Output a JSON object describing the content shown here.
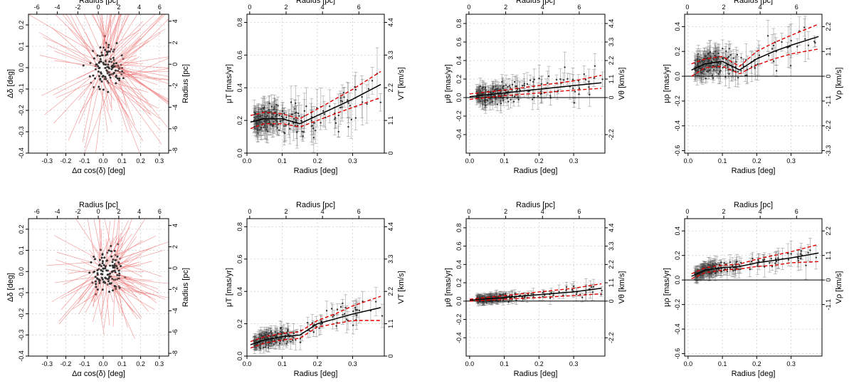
{
  "figure": {
    "labels": {
      "radius_pc": "Radius [pc]",
      "radius_deg": "Radius [deg]",
      "ddelta": "Δδ [deg]",
      "dalpha": "Δα cos(δ) [deg]",
      "muT": "μT [mas/yr]",
      "VT": "VT [km/s]",
      "mutheta": "μθ [mas/yr]",
      "Vtheta": "Vθ [km/s]",
      "murho": "μρ [mas/yr]",
      "Vrho": "Vρ [km/s]"
    }
  },
  "chart_data": [
    {
      "id": "top-sky",
      "type": "scatter",
      "xlabel": "Δα cos(δ) [deg]",
      "ylabel": "Δδ [deg]",
      "x2label": "Radius [pc]",
      "y2label": "Radius [pc]",
      "xlim": [
        -0.4,
        0.35
      ],
      "ylim": [
        -0.4,
        0.25
      ],
      "x_ticks": [
        -0.3,
        -0.2,
        -0.1,
        0.0,
        0.1,
        0.2,
        0.3
      ],
      "y_ticks": [
        -0.4,
        -0.3,
        -0.2,
        -0.1,
        0.0,
        0.1,
        0.2
      ],
      "x2_ticks": [
        -6,
        -4,
        -2,
        0,
        2,
        4,
        6
      ],
      "y2_ticks": [
        -8,
        -6,
        -4,
        -2,
        0,
        2,
        4
      ],
      "arrows": "many long radial proper-motion vectors",
      "n_points": 120,
      "spread": [
        0.1,
        0.12
      ],
      "arrow_scale": 0.35,
      "seed": 11
    },
    {
      "id": "top-muT",
      "type": "line",
      "xlabel": "Radius [deg]",
      "ylabel": "μT [mas/yr]",
      "x2label": "Radius [pc]",
      "y2label": "VT [km/s]",
      "xlim": [
        0,
        0.39
      ],
      "ylim": [
        0,
        0.85
      ],
      "x_ticks": [
        0.0,
        0.1,
        0.2,
        0.3
      ],
      "y_ticks": [
        0.0,
        0.2,
        0.4,
        0.6,
        0.8
      ],
      "x2_ticks": [
        "0",
        "2",
        "4",
        "6"
      ],
      "y2_ticks": [
        "0",
        "1.1",
        "2.2",
        "3.3",
        "4.4"
      ],
      "y2_values": [
        0,
        0.2,
        0.4,
        0.6,
        0.8
      ],
      "zero_line": 0,
      "mean": {
        "x": [
          0.01,
          0.05,
          0.1,
          0.15,
          0.2,
          0.25,
          0.3,
          0.38
        ],
        "y": [
          0.19,
          0.21,
          0.21,
          0.18,
          0.23,
          0.28,
          0.33,
          0.42
        ]
      },
      "upper": {
        "x": [
          0.01,
          0.05,
          0.1,
          0.15,
          0.2,
          0.25,
          0.3,
          0.38
        ],
        "y": [
          0.23,
          0.25,
          0.24,
          0.21,
          0.27,
          0.33,
          0.39,
          0.5
        ]
      },
      "lower": {
        "x": [
          0.01,
          0.05,
          0.1,
          0.15,
          0.2,
          0.25,
          0.3,
          0.38
        ],
        "y": [
          0.15,
          0.18,
          0.18,
          0.16,
          0.2,
          0.24,
          0.28,
          0.34
        ]
      },
      "scatter": {
        "n": 230,
        "noise": 0.11,
        "err": 0.07,
        "seed": 21
      }
    },
    {
      "id": "top-mutheta",
      "type": "line",
      "xlabel": "Radius [deg]",
      "ylabel": "μθ [mas/yr]",
      "x2label": "Radius [pc]",
      "y2label": "Vθ [km/s]",
      "xlim": [
        -0.01,
        0.39
      ],
      "ylim": [
        -0.6,
        0.9
      ],
      "x_ticks": [
        0.0,
        0.1,
        0.2,
        0.3
      ],
      "y_ticks": [
        -0.4,
        -0.2,
        0.0,
        0.2,
        0.4,
        0.6,
        0.8
      ],
      "x2_ticks": [
        "0",
        "2",
        "4",
        "6"
      ],
      "y2_ticks": [
        "-2.2",
        "0",
        "1.1",
        "2.2",
        "3.3",
        "4.4"
      ],
      "y2_values": [
        -0.4,
        0,
        0.2,
        0.4,
        0.6,
        0.8
      ],
      "zero_line": 0,
      "mean": {
        "x": [
          0.0,
          0.1,
          0.2,
          0.3,
          0.38
        ],
        "y": [
          0.01,
          0.05,
          0.09,
          0.13,
          0.16
        ]
      },
      "upper": {
        "x": [
          0.0,
          0.1,
          0.2,
          0.3,
          0.38
        ],
        "y": [
          0.04,
          0.08,
          0.13,
          0.18,
          0.24
        ]
      },
      "lower": {
        "x": [
          0.0,
          0.1,
          0.2,
          0.3,
          0.38
        ],
        "y": [
          -0.02,
          0.02,
          0.05,
          0.08,
          0.1
        ]
      },
      "scatter": {
        "n": 230,
        "noise": 0.14,
        "err": 0.08,
        "seed": 31
      }
    },
    {
      "id": "top-murho",
      "type": "line",
      "xlabel": "Radius [deg]",
      "ylabel": "μρ [mas/yr]",
      "x2label": "Radius [pc]",
      "y2label": "Vρ [km/s]",
      "xlim": [
        -0.01,
        0.39
      ],
      "ylim": [
        -0.62,
        0.5
      ],
      "x_ticks": [
        0.0,
        0.1,
        0.2,
        0.3
      ],
      "y_ticks": [
        -0.6,
        -0.4,
        -0.2,
        0.0,
        0.2,
        0.4
      ],
      "x2_ticks": [
        "0",
        "2",
        "4",
        "6"
      ],
      "y2_ticks": [
        "-3.3",
        "-2.2",
        "-1.1",
        "0",
        "1.1",
        "2.2"
      ],
      "y2_values": [
        -0.6,
        -0.4,
        -0.2,
        0,
        0.2,
        0.4
      ],
      "zero_line": 0,
      "mean": {
        "x": [
          0.01,
          0.05,
          0.1,
          0.15,
          0.2,
          0.25,
          0.3,
          0.38
        ],
        "y": [
          0.05,
          0.1,
          0.12,
          0.05,
          0.14,
          0.2,
          0.25,
          0.32
        ]
      },
      "upper": {
        "x": [
          0.01,
          0.05,
          0.1,
          0.15,
          0.2,
          0.25,
          0.3,
          0.38
        ],
        "y": [
          0.1,
          0.14,
          0.16,
          0.08,
          0.2,
          0.27,
          0.33,
          0.42
        ]
      },
      "lower": {
        "x": [
          0.01,
          0.05,
          0.1,
          0.15,
          0.2,
          0.25,
          0.3,
          0.38
        ],
        "y": [
          0.0,
          0.07,
          0.08,
          0.02,
          0.09,
          0.14,
          0.18,
          0.22
        ]
      },
      "scatter": {
        "n": 230,
        "noise": 0.13,
        "err": 0.08,
        "seed": 41
      }
    },
    {
      "id": "bottom-sky",
      "type": "scatter",
      "xlabel": "Δα cos(δ) [deg]",
      "ylabel": "Δδ [deg]",
      "x2label": "Radius [pc]",
      "y2label": "Radius [pc]",
      "xlim": [
        -0.4,
        0.35
      ],
      "ylim": [
        -0.4,
        0.25
      ],
      "x_ticks": [
        -0.3,
        -0.2,
        -0.1,
        0.0,
        0.1,
        0.2,
        0.3
      ],
      "y_ticks": [
        -0.4,
        -0.3,
        -0.2,
        -0.1,
        0.0,
        0.1,
        0.2
      ],
      "x2_ticks": [
        -6,
        -4,
        -2,
        0,
        2,
        4,
        6
      ],
      "y2_ticks": [
        -8,
        -6,
        -4,
        -2,
        0,
        2,
        4
      ],
      "arrows": "shorter radial proper-motion vectors",
      "n_points": 120,
      "spread": [
        0.09,
        0.11
      ],
      "arrow_scale": 0.22,
      "seed": 51
    },
    {
      "id": "bottom-muT",
      "type": "line",
      "xlabel": "Radius [deg]",
      "ylabel": "μT [mas/yr]",
      "x2label": "Radius [pc]",
      "y2label": "VT [km/s]",
      "xlim": [
        0,
        0.39
      ],
      "ylim": [
        0,
        0.85
      ],
      "x_ticks": [
        0.0,
        0.1,
        0.2,
        0.3
      ],
      "y_ticks": [
        0.0,
        0.2,
        0.4,
        0.6,
        0.8
      ],
      "x2_ticks": [
        "0",
        "2",
        "4",
        "6"
      ],
      "y2_ticks": [
        "0",
        "1.1",
        "2.2",
        "3.3",
        "4.4"
      ],
      "y2_values": [
        0,
        0.2,
        0.4,
        0.6,
        0.8
      ],
      "zero_line": 0,
      "mean": {
        "x": [
          0.01,
          0.05,
          0.1,
          0.15,
          0.2,
          0.25,
          0.3,
          0.38
        ],
        "y": [
          0.07,
          0.1,
          0.12,
          0.13,
          0.2,
          0.23,
          0.26,
          0.3
        ]
      },
      "upper": {
        "x": [
          0.01,
          0.05,
          0.1,
          0.15,
          0.2,
          0.25,
          0.3,
          0.38
        ],
        "y": [
          0.09,
          0.12,
          0.14,
          0.15,
          0.22,
          0.26,
          0.31,
          0.37
        ]
      },
      "lower": {
        "x": [
          0.01,
          0.05,
          0.1,
          0.15,
          0.2,
          0.25,
          0.3,
          0.38
        ],
        "y": [
          0.05,
          0.08,
          0.1,
          0.11,
          0.18,
          0.2,
          0.22,
          0.22
        ]
      },
      "scatter": {
        "n": 230,
        "noise": 0.06,
        "err": 0.04,
        "seed": 61
      }
    },
    {
      "id": "bottom-mutheta",
      "type": "line",
      "xlabel": "Radius [deg]",
      "ylabel": "μθ [mas/yr]",
      "x2label": "Radius [pc]",
      "y2label": "Vθ [km/s]",
      "xlim": [
        -0.01,
        0.39
      ],
      "ylim": [
        -0.6,
        0.9
      ],
      "x_ticks": [
        0.0,
        0.1,
        0.2,
        0.3
      ],
      "y_ticks": [
        -0.4,
        -0.2,
        0.0,
        0.2,
        0.4,
        0.6,
        0.8
      ],
      "x2_ticks": [
        "0",
        "2",
        "4",
        "6"
      ],
      "y2_ticks": [
        "-2.2",
        "0",
        "1.1",
        "2.2",
        "3.3",
        "4.4"
      ],
      "y2_values": [
        -0.4,
        0,
        0.2,
        0.4,
        0.6,
        0.8
      ],
      "zero_line": 0,
      "mean": {
        "x": [
          0.0,
          0.1,
          0.2,
          0.3,
          0.38
        ],
        "y": [
          0.01,
          0.04,
          0.07,
          0.1,
          0.14
        ]
      },
      "upper": {
        "x": [
          0.0,
          0.1,
          0.2,
          0.3,
          0.38
        ],
        "y": [
          0.02,
          0.06,
          0.1,
          0.14,
          0.19
        ]
      },
      "lower": {
        "x": [
          0.0,
          0.1,
          0.2,
          0.3,
          0.38
        ],
        "y": [
          0.0,
          0.02,
          0.04,
          0.06,
          0.08
        ]
      },
      "scatter": {
        "n": 230,
        "noise": 0.05,
        "err": 0.04,
        "seed": 71
      }
    },
    {
      "id": "bottom-murho",
      "type": "line",
      "xlabel": "Radius [deg]",
      "ylabel": "μρ [mas/yr]",
      "x2label": "Radius [pc]",
      "y2label": "Vρ [km/s]",
      "xlim": [
        -0.01,
        0.39
      ],
      "ylim": [
        -0.62,
        0.5
      ],
      "x_ticks": [
        0.0,
        0.1,
        0.2,
        0.3
      ],
      "y_ticks": [
        -0.6,
        -0.4,
        -0.2,
        0.0,
        0.2,
        0.4
      ],
      "x2_ticks": [
        "0",
        "2",
        "4",
        "6"
      ],
      "y2_ticks": [
        "-1.1",
        "0",
        "1.1",
        "2.2"
      ],
      "y2_values": [
        -0.2,
        0,
        0.2,
        0.4
      ],
      "zero_line": 0,
      "mean": {
        "x": [
          0.01,
          0.05,
          0.1,
          0.15,
          0.2,
          0.25,
          0.3,
          0.38
        ],
        "y": [
          0.03,
          0.08,
          0.1,
          0.11,
          0.14,
          0.16,
          0.18,
          0.22
        ]
      },
      "upper": {
        "x": [
          0.01,
          0.05,
          0.1,
          0.15,
          0.2,
          0.25,
          0.3,
          0.38
        ],
        "y": [
          0.05,
          0.1,
          0.12,
          0.13,
          0.17,
          0.2,
          0.23,
          0.29
        ]
      },
      "lower": {
        "x": [
          0.01,
          0.05,
          0.1,
          0.15,
          0.2,
          0.25,
          0.3,
          0.38
        ],
        "y": [
          0.01,
          0.06,
          0.08,
          0.09,
          0.11,
          0.12,
          0.14,
          0.15
        ]
      },
      "scatter": {
        "n": 230,
        "noise": 0.06,
        "err": 0.05,
        "seed": 81
      }
    }
  ]
}
